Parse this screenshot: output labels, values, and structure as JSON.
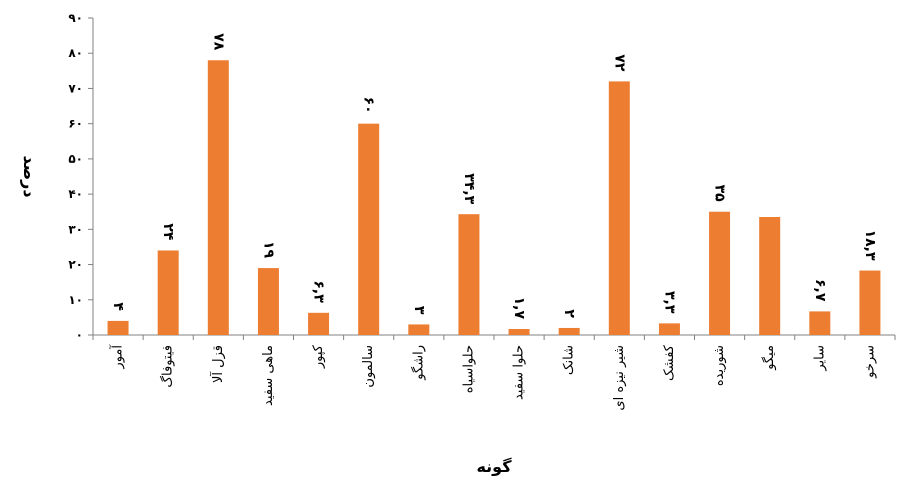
{
  "chart_data": {
    "type": "bar",
    "title": "",
    "xlabel": "گونه",
    "ylabel": "درصد",
    "ylim": [
      0,
      90
    ],
    "yticks": [
      0,
      10,
      20,
      30,
      40,
      50,
      60,
      70,
      80,
      90
    ],
    "ytick_labels": [
      "۰",
      "۱۰",
      "۲۰",
      "۳۰",
      "۴۰",
      "۵۰",
      "۶۰",
      "۷۰",
      "۸۰",
      "۹۰"
    ],
    "grid": false,
    "bar_color": "#ed7d31",
    "categories": [
      "آمور",
      "فیتوفاگ",
      "قزل آلا",
      "ماهی سفید",
      "کپور",
      "سالمون",
      "راشگو",
      "حلواسیاه",
      "حلوا سفید",
      "شانک",
      "شیر نیزه ای",
      "کفشک",
      "شوریده",
      "میگو",
      "سایر",
      "سرخو"
    ],
    "values": [
      4,
      24,
      78,
      19,
      6.3,
      60,
      3,
      34.3,
      1.7,
      2,
      72,
      3.3,
      35,
      33.5,
      6.7,
      18.3
    ],
    "data_labels": [
      "۴",
      "۲۴",
      "۷۸",
      "۱۹",
      "۶,۳",
      "۶۰",
      "۳",
      "۳۴,۳",
      "۱,۷",
      "۲",
      "۷۲",
      "۳,۳",
      "۳۵",
      "",
      "۶,۷",
      "۱۸,۳"
    ]
  }
}
